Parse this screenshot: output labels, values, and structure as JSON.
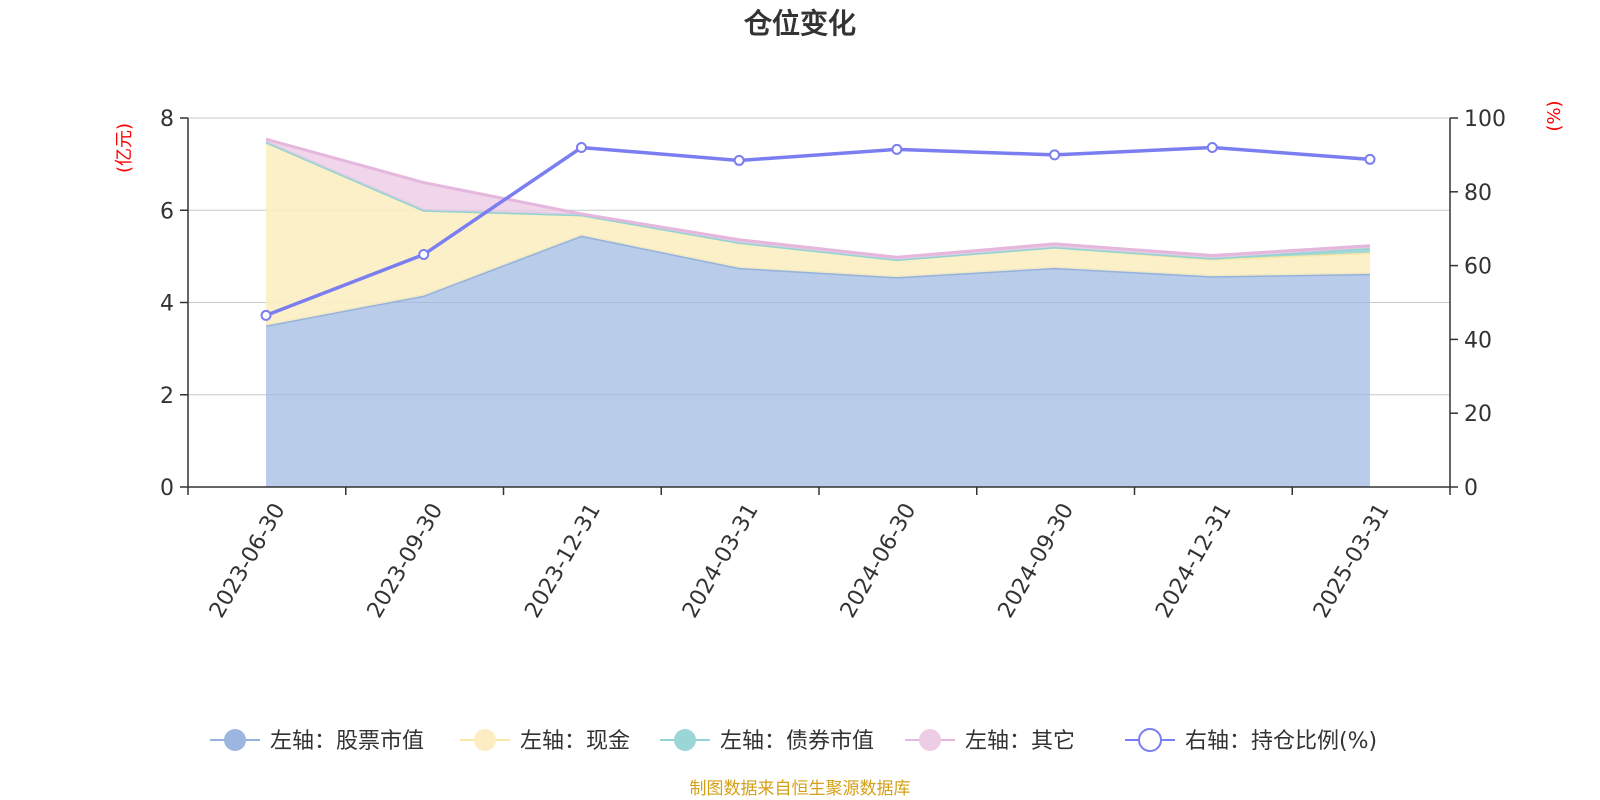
{
  "title": "仓位变化",
  "source": "制图数据来自恒生聚源数据库",
  "left_axis_unit": "(亿元)",
  "right_axis_unit": "(%)",
  "colors": {
    "stock": "#9bb7e0",
    "stock_line": "#95b2dc",
    "cash": "#fbeec2",
    "cash_line": "#f8e7a6",
    "bond": "#9bd6d6",
    "bond_line": "#93d3d3",
    "other": "#edcce6",
    "other_line": "#e6b7dc",
    "ratio": "#7b7ef0",
    "grid": "#c8c8c8",
    "axis": "#333333"
  },
  "chart_data": {
    "type": "area",
    "title": "仓位变化",
    "categories": [
      "2023-06-30",
      "2023-09-30",
      "2023-12-31",
      "2024-03-31",
      "2024-06-30",
      "2024-09-30",
      "2024-12-31",
      "2025-03-31"
    ],
    "left_axis": {
      "label": "(亿元)",
      "ylim": [
        0,
        8
      ],
      "ticks": [
        "0",
        "2",
        "4",
        "6",
        "8"
      ],
      "tick_values": [
        0,
        2,
        4,
        6,
        8
      ]
    },
    "right_axis": {
      "label": "(%)",
      "ylim": [
        0,
        100
      ],
      "ticks": [
        "0",
        "20",
        "40",
        "60",
        "80",
        "100"
      ],
      "tick_values": [
        0,
        20,
        40,
        60,
        80,
        100
      ]
    },
    "stacked": true,
    "grid": true,
    "legend_position": "bottom",
    "series": [
      {
        "name": "左轴：股票市值",
        "axis": "left",
        "kind": "area",
        "values": [
          3.5,
          4.15,
          5.45,
          4.75,
          4.55,
          4.75,
          4.57,
          4.62
        ]
      },
      {
        "name": "左轴：现金",
        "axis": "left",
        "kind": "area",
        "values": [
          3.98,
          1.85,
          0.45,
          0.55,
          0.38,
          0.45,
          0.37,
          0.46
        ]
      },
      {
        "name": "左轴：债券市值",
        "axis": "left",
        "kind": "area",
        "values": [
          0.0,
          0.0,
          0.0,
          0.0,
          0.0,
          0.0,
          0.02,
          0.1
        ]
      },
      {
        "name": "左轴：其它",
        "axis": "left",
        "kind": "area",
        "values": [
          0.06,
          0.6,
          0.02,
          0.06,
          0.05,
          0.07,
          0.06,
          0.05
        ]
      },
      {
        "name": "右轴：持仓比例(%)",
        "axis": "right",
        "kind": "line",
        "values": [
          46.5,
          63.0,
          92.0,
          88.5,
          91.5,
          90.0,
          92.0,
          88.8
        ]
      }
    ]
  }
}
